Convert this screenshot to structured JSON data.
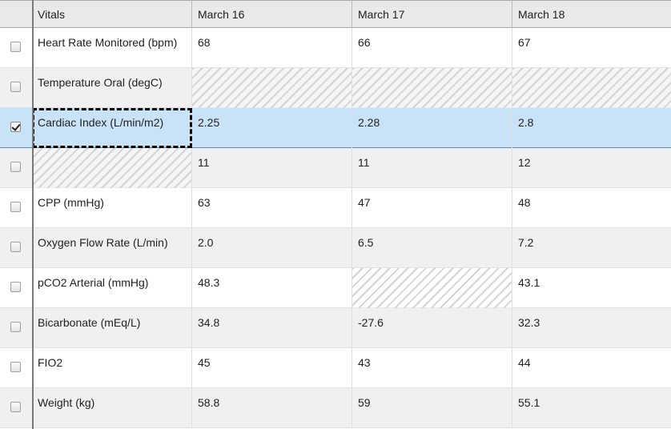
{
  "header": {
    "vitals": "Vitals",
    "dates": [
      "March 16",
      "March 17",
      "March 18"
    ]
  },
  "rows": [
    {
      "name": "Heart Rate Monitored (bpm)",
      "values": [
        "68",
        "66",
        "67"
      ],
      "checked": false
    },
    {
      "name": "Temperature Oral (degC)",
      "values": [
        "",
        "",
        ""
      ],
      "checked": false
    },
    {
      "name": "Cardiac Index (L/min/m2)",
      "values": [
        "2.25",
        "2.28",
        "2.8"
      ],
      "checked": true
    },
    {
      "name": "",
      "values": [
        "11",
        "11",
        "12"
      ],
      "checked": false
    },
    {
      "name": "CPP (mmHg)",
      "values": [
        "63",
        "47",
        "48"
      ],
      "checked": false
    },
    {
      "name": "Oxygen Flow Rate (L/min)",
      "values": [
        "2.0",
        "6.5",
        "7.2"
      ],
      "checked": false
    },
    {
      "name": "pCO2 Arterial (mmHg)",
      "values": [
        "48.3",
        "",
        "43.1"
      ],
      "checked": false
    },
    {
      "name": "Bicarbonate (mEq/L)",
      "values": [
        "34.8",
        "-27.6",
        "32.3"
      ],
      "checked": false
    },
    {
      "name": "FIO2",
      "values": [
        "45",
        "43",
        "44"
      ],
      "checked": false
    },
    {
      "name": "Weight (kg)",
      "values": [
        "58.8",
        "59",
        "55.1"
      ],
      "checked": false
    }
  ],
  "colors": {
    "selected_row": "#c8e3f7",
    "header_bg": "#e9e9eb",
    "alt_row": "#f0f0f0"
  }
}
